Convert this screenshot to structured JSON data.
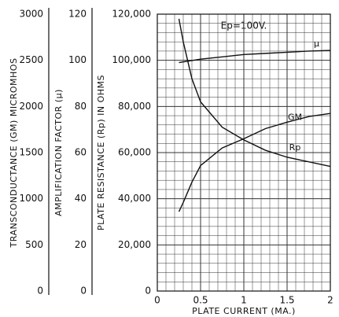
{
  "chart_data": {
    "type": "line",
    "annotation": "Ep=100V.",
    "xlabel": "PLATE CURRENT (MA.)",
    "ylabel": "PLATE RESISTANCE (Rp) IN OHMS",
    "y2label": "AMPLIFICATION FACTOR (μ)",
    "y3label": "TRANSCONDUCTANCE (GM) MICROMHOS",
    "xlim": [
      0,
      2
    ],
    "xticks": [
      0,
      0.5,
      1,
      1.5,
      2
    ],
    "ylim": [
      0,
      120000
    ],
    "yticks": [
      {
        "value": 0,
        "label": "0"
      },
      {
        "value": 20000,
        "label": "20,000"
      },
      {
        "value": 40000,
        "label": "40,000"
      },
      {
        "value": 60000,
        "label": "60,000"
      },
      {
        "value": 80000,
        "label": "80,000"
      },
      {
        "value": 100000,
        "label": "100,000"
      },
      {
        "value": 120000,
        "label": "120,000"
      }
    ],
    "y2lim": [
      0,
      120
    ],
    "y2ticks": [
      0,
      20,
      40,
      60,
      80,
      100,
      120
    ],
    "y3lim": [
      0,
      3000
    ],
    "y3ticks": [
      0,
      500,
      1000,
      1500,
      2000,
      2500,
      3000
    ],
    "grid": true,
    "xgrid": [
      0,
      0.1,
      0.2,
      0.3,
      0.4,
      0.5,
      0.6,
      0.7,
      0.8,
      0.9,
      1,
      1.1,
      1.2,
      1.3,
      1.4,
      1.5,
      1.6,
      1.7,
      1.8,
      1.9,
      2
    ],
    "ygrid": [
      0,
      4000,
      8000,
      12000,
      16000,
      20000,
      24000,
      28000,
      32000,
      36000,
      40000,
      44000,
      48000,
      52000,
      56000,
      60000,
      64000,
      68000,
      72000,
      76000,
      80000,
      84000,
      88000,
      92000,
      96000,
      100000,
      104000,
      108000,
      112000,
      116000,
      120000
    ],
    "x": [
      0.25,
      0.3,
      0.4,
      0.5,
      0.75,
      1,
      1.25,
      1.5,
      1.75,
      2
    ],
    "series": [
      {
        "name": "μ",
        "color": "#111111",
        "axis": "y2",
        "values": [
          99,
          99.3,
          99.9,
          100.5,
          101.5,
          102.5,
          103,
          103.5,
          104,
          104.3
        ]
      },
      {
        "name": "GM",
        "color": "#111111",
        "axis": "y3",
        "values": [
          860,
          960,
          1180,
          1360,
          1550,
          1650,
          1760,
          1830,
          1890,
          1925
        ]
      },
      {
        "name": "Rp",
        "color": "#111111",
        "values": [
          118000,
          108000,
          92000,
          82000,
          71000,
          65500,
          61000,
          58000,
          56000,
          54000
        ]
      }
    ]
  }
}
